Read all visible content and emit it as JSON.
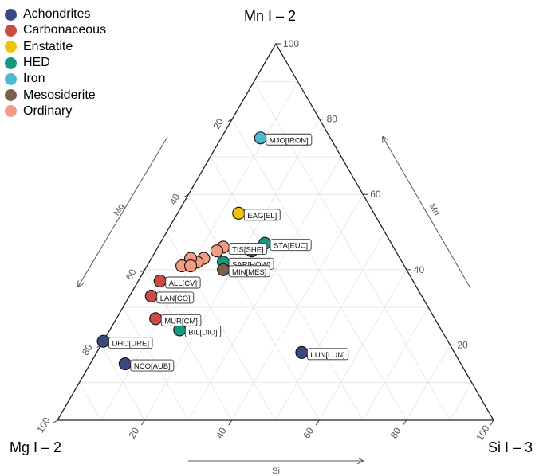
{
  "chart_data": {
    "type": "ternary-scatter",
    "vertices": {
      "top": "Mn I – 2",
      "left": "Mg I – 2",
      "right": "Si I – 3"
    },
    "axis_titles": {
      "left": "Mg",
      "right": "Mn",
      "bottom": "Si"
    },
    "ticks": {
      "mn": [
        "20",
        "40",
        "60",
        "80",
        "100"
      ],
      "mg": [
        "20",
        "40",
        "60",
        "80",
        "100"
      ],
      "si": [
        "20",
        "40",
        "60",
        "80",
        "100"
      ]
    },
    "grid": true,
    "legend": {
      "position": "top-left",
      "entries": [
        {
          "name": "Achondrites",
          "color": "#3a4a7e"
        },
        {
          "name": "Carbonaceous",
          "color": "#cc4c45"
        },
        {
          "name": "Enstatite",
          "color": "#f0c20e"
        },
        {
          "name": "HED",
          "color": "#139a7c"
        },
        {
          "name": "Iron",
          "color": "#4db9d3"
        },
        {
          "name": "Mesosiderite",
          "color": "#7c5f4b"
        },
        {
          "name": "Ordinary",
          "color": "#f29c82"
        }
      ]
    },
    "points": [
      {
        "group": "Iron",
        "si": 9,
        "mn": 75,
        "mg": 16,
        "label": "MJO[IRON]"
      },
      {
        "group": "Enstatite",
        "si": 14,
        "mn": 55,
        "mg": 31,
        "label": "EAG[EL]"
      },
      {
        "group": "Achondrites",
        "si": 22,
        "mn": 45,
        "mg": 33,
        "label": ""
      },
      {
        "group": "HED",
        "si": 24,
        "mn": 47,
        "mg": 29,
        "label": "STA[EUC]"
      },
      {
        "group": "Ordinary",
        "si": 15,
        "mn": 46,
        "mg": 39,
        "label": "TIS[SHE]"
      },
      {
        "group": "Ordinary",
        "si": 14,
        "mn": 45,
        "mg": 41,
        "label": ""
      },
      {
        "group": "Ordinary",
        "si": 12,
        "mn": 43,
        "mg": 45,
        "label": ""
      },
      {
        "group": "Ordinary",
        "si": 11,
        "mn": 42,
        "mg": 47,
        "label": ""
      },
      {
        "group": "Ordinary",
        "si": 9,
        "mn": 43,
        "mg": 48,
        "label": ""
      },
      {
        "group": "Ordinary",
        "si": 8,
        "mn": 41,
        "mg": 51,
        "label": ""
      },
      {
        "group": "Ordinary",
        "si": 10,
        "mn": 41,
        "mg": 49,
        "label": ""
      },
      {
        "group": "HED",
        "si": 17,
        "mn": 42,
        "mg": 41,
        "label": "SAR[HOW]"
      },
      {
        "group": "Mesosiderite",
        "si": 18,
        "mn": 40,
        "mg": 42,
        "label": "MIN[MES]"
      },
      {
        "group": "Carbonaceous",
        "si": 5,
        "mn": 37,
        "mg": 58,
        "label": "ALL[CV]"
      },
      {
        "group": "Carbonaceous",
        "si": 5,
        "mn": 33,
        "mg": 62,
        "label": "LAN[CO]"
      },
      {
        "group": "Carbonaceous",
        "si": 9,
        "mn": 27,
        "mg": 64,
        "label": "MUR[CM]"
      },
      {
        "group": "HED",
        "si": 16,
        "mn": 24,
        "mg": 60,
        "label": "BIL[DIO]"
      },
      {
        "group": "Achondrites",
        "si": 0,
        "mn": 21,
        "mg": 79,
        "label": "DHO[URE]"
      },
      {
        "group": "Achondrites",
        "si": 8,
        "mn": 15,
        "mg": 77,
        "label": "NCO[AUB]"
      },
      {
        "group": "Achondrites",
        "si": 47,
        "mn": 18,
        "mg": 35,
        "label": "LUN[LUN]"
      }
    ]
  }
}
